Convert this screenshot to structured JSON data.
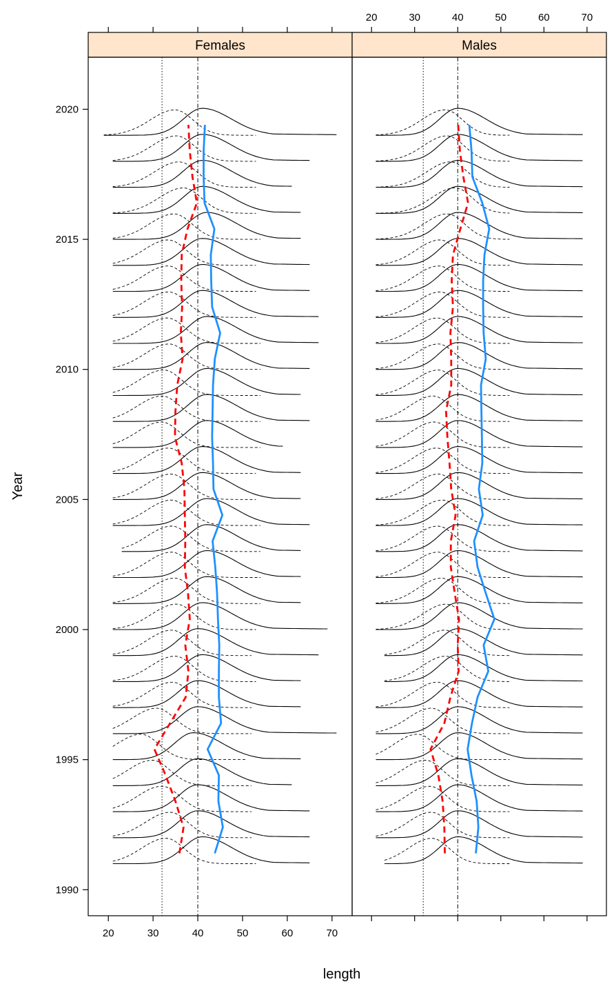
{
  "chart_data": {
    "type": "line",
    "title": "",
    "xlabel": "length",
    "ylabel": "Year",
    "xlim": [
      15.5,
      74.5
    ],
    "ylim": [
      1989,
      2022
    ],
    "x_ticks": [
      20,
      30,
      40,
      50,
      60,
      70
    ],
    "y_ticks": [
      1990,
      1995,
      2000,
      2005,
      2010,
      2015,
      2020
    ],
    "strip_color": "#ffe5cc",
    "reference_lines": {
      "dotted_at": 32,
      "dashdot_at": 40
    },
    "panels": [
      {
        "name": "Females",
        "reference_lines": {
          "dotted": 32,
          "dashdot": 40
        },
        "years": [
          1991,
          1992,
          1993,
          1994,
          1995,
          1996,
          1997,
          1998,
          1999,
          2000,
          2001,
          2002,
          2003,
          2004,
          2005,
          2006,
          2007,
          2008,
          2009,
          2010,
          2011,
          2012,
          2013,
          2014,
          2015,
          2016,
          2017,
          2018,
          2019
        ],
        "length_range": [
          [
            21,
            65
          ],
          [
            21,
            65
          ],
          [
            21,
            65
          ],
          [
            21,
            61
          ],
          [
            21,
            63
          ],
          [
            21,
            71
          ],
          [
            21,
            63
          ],
          [
            21,
            63
          ],
          [
            21,
            67
          ],
          [
            21,
            69
          ],
          [
            21,
            63
          ],
          [
            21,
            63
          ],
          [
            23,
            63
          ],
          [
            21,
            65
          ],
          [
            21,
            63
          ],
          [
            21,
            63
          ],
          [
            21,
            59
          ],
          [
            21,
            65
          ],
          [
            21,
            63
          ],
          [
            21,
            65
          ],
          [
            21,
            67
          ],
          [
            21,
            67
          ],
          [
            21,
            65
          ],
          [
            21,
            65
          ],
          [
            21,
            63
          ],
          [
            21,
            63
          ],
          [
            21,
            61
          ],
          [
            21,
            65
          ],
          [
            19,
            71
          ]
        ],
        "predicted_peak_length": [
          41,
          40,
          40,
          40,
          39,
          40,
          40,
          41,
          40,
          41,
          42,
          42,
          42,
          42,
          41,
          41,
          42,
          42,
          42,
          42,
          42,
          41,
          41,
          41,
          42,
          41,
          41,
          41,
          41
        ],
        "observed_mean_length": [
          43.8,
          45.6,
          44.6,
          44.7,
          42.2,
          45.2,
          44.7,
          44.7,
          44.8,
          44.5,
          44.3,
          43.9,
          43.3,
          45.5,
          43.5,
          43.4,
          43.2,
          43.3,
          43.4,
          43.8,
          45.0,
          43.2,
          43.0,
          42.9,
          43.7,
          41.5,
          41.3,
          41.3,
          41.6
        ],
        "predicted_mean_length": [
          35.9,
          36.8,
          35.0,
          32.8,
          30.3,
          33.8,
          37.3,
          37.9,
          37.2,
          38.2,
          37.8,
          37.1,
          37.2,
          37.1,
          37.0,
          36.4,
          34.9,
          35.0,
          35.4,
          36.6,
          36.2,
          36.5,
          36.3,
          36.4,
          37.7,
          39.8,
          38.8,
          38.2,
          37.9
        ]
      },
      {
        "name": "Males",
        "reference_lines": {
          "dotted": 32,
          "dashdot": 40
        },
        "years": [
          1991,
          1992,
          1993,
          1994,
          1995,
          1996,
          1997,
          1998,
          1999,
          2000,
          2001,
          2002,
          2003,
          2004,
          2005,
          2006,
          2007,
          2008,
          2009,
          2010,
          2011,
          2012,
          2013,
          2014,
          2015,
          2016,
          2017,
          2018,
          2019
        ],
        "length_range": [
          [
            23,
            69
          ],
          [
            21,
            69
          ],
          [
            21,
            69
          ],
          [
            21,
            69
          ],
          [
            21,
            69
          ],
          [
            21,
            69
          ],
          [
            21,
            69
          ],
          [
            23,
            69
          ],
          [
            23,
            69
          ],
          [
            21,
            69
          ],
          [
            21,
            69
          ],
          [
            21,
            69
          ],
          [
            21,
            69
          ],
          [
            21,
            69
          ],
          [
            21,
            69
          ],
          [
            21,
            69
          ],
          [
            21,
            69
          ],
          [
            21,
            69
          ],
          [
            21,
            69
          ],
          [
            21,
            69
          ],
          [
            21,
            69
          ],
          [
            21,
            69
          ],
          [
            21,
            69
          ],
          [
            21,
            69
          ],
          [
            21,
            69
          ],
          [
            21,
            69
          ],
          [
            21,
            69
          ],
          [
            21,
            69
          ],
          [
            21,
            69
          ]
        ],
        "predicted_peak_length": [
          40,
          40,
          40,
          40,
          40,
          40,
          40,
          40,
          40,
          40,
          40,
          40,
          40,
          40,
          40,
          40,
          40,
          40,
          40,
          40,
          40,
          40,
          40,
          40,
          40,
          40,
          40,
          40,
          40
        ],
        "observed_mean_length": [
          44.2,
          44.8,
          44.4,
          43.2,
          42.3,
          43.3,
          44.6,
          47.1,
          46.0,
          48.5,
          46.5,
          44.6,
          43.8,
          45.8,
          44.9,
          45.7,
          45.6,
          45.5,
          45.4,
          46.5,
          46.0,
          45.9,
          45.9,
          46.2,
          47.3,
          45.7,
          43.4,
          43.2,
          42.7
        ],
        "predicted_mean_length": [
          37.0,
          36.9,
          36.5,
          35.5,
          33.7,
          36.9,
          38.3,
          40.2,
          40.0,
          40.3,
          39.3,
          38.4,
          38.4,
          39.5,
          38.5,
          38.1,
          37.6,
          37.3,
          38.5,
          38.5,
          38.3,
          38.9,
          38.6,
          38.9,
          40.6,
          42.4,
          41.3,
          40.5,
          40.1
        ]
      }
    ]
  }
}
